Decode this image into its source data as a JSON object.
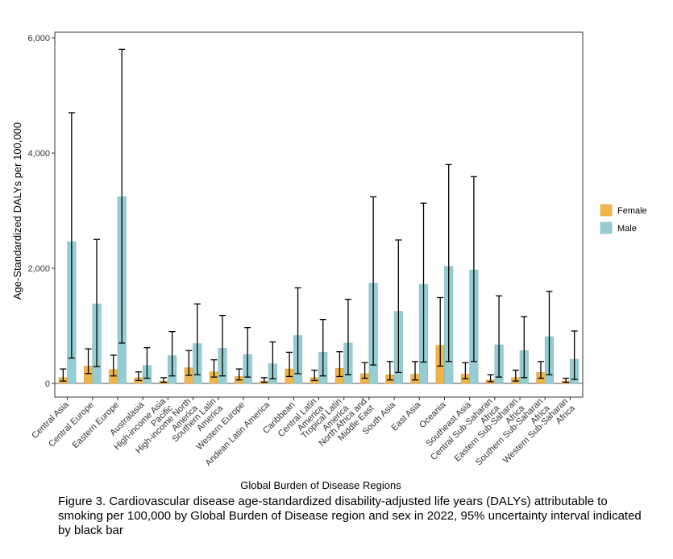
{
  "chart_data": {
    "type": "bar",
    "title": "",
    "xlabel": "Global Burden of Disease Regions",
    "ylabel": "Age-Standardized DALYs per 100,000",
    "ylim": [
      0,
      6000
    ],
    "yticks": [
      0,
      2000,
      4000,
      6000
    ],
    "ytick_labels": [
      "0",
      "2,000",
      "4,000",
      "6,000"
    ],
    "grid": false,
    "legend_position": "right",
    "categories": [
      "Central Asia",
      "Central Europe",
      "Eastern Europe",
      "Australasia",
      "High-income Asia Pacific",
      "High-income North America",
      "Southern Latin America",
      "Western Europe",
      "Andean Latin America",
      "Caribbean",
      "Central Latin America",
      "Tropical Latin America",
      "North Africa and Middle East",
      "South Asia",
      "East Asia",
      "Oceania",
      "Southeast Asia",
      "Central Sub-Saharan Africa",
      "Eastern Sub-Saharan Africa",
      "Southern Sub-Saharan Africa",
      "Western Sub-Saharan Africa"
    ],
    "category_label_lines": [
      [
        "Central Asia"
      ],
      [
        "Central Europe"
      ],
      [
        "Eastern Europe"
      ],
      [
        "Australasia"
      ],
      [
        "High-income Asia",
        "Pacific"
      ],
      [
        "High-income North",
        "America"
      ],
      [
        "Southern Latin",
        "America"
      ],
      [
        "Western Europe"
      ],
      [
        "Andean Latin America"
      ],
      [
        "Caribbean"
      ],
      [
        "Central Latin",
        "America"
      ],
      [
        "Tropical Latin",
        "America"
      ],
      [
        "North Africa and",
        "Middle East"
      ],
      [
        "South Asia"
      ],
      [
        "East Asia"
      ],
      [
        "Oceania"
      ],
      [
        "Southeast Asia"
      ],
      [
        "Central Sub-Saharan",
        "Africa"
      ],
      [
        "Eastern Sub-Saharan",
        "Africa"
      ],
      [
        "Southern Sub-Saharan",
        "Africa"
      ],
      [
        "Western Sub-Saharan",
        "Africa"
      ]
    ],
    "series": [
      {
        "name": "Female",
        "color": "#f0b54a",
        "values": [
          100,
          300,
          240,
          100,
          40,
          270,
          200,
          120,
          40,
          250,
          100,
          260,
          170,
          150,
          160,
          660,
          160,
          60,
          100,
          190,
          40
        ],
        "lower": [
          40,
          170,
          130,
          50,
          20,
          140,
          110,
          60,
          20,
          120,
          50,
          120,
          90,
          60,
          60,
          300,
          80,
          30,
          40,
          90,
          20
        ],
        "upper": [
          250,
          600,
          490,
          200,
          100,
          570,
          410,
          250,
          100,
          540,
          230,
          550,
          360,
          380,
          380,
          1490,
          360,
          150,
          230,
          380,
          90
        ]
      },
      {
        "name": "Male",
        "color": "#96cdd3",
        "values": [
          2460,
          1380,
          3240,
          310,
          480,
          690,
          610,
          500,
          340,
          830,
          540,
          700,
          1740,
          1250,
          1720,
          2030,
          1970,
          670,
          570,
          810,
          420
        ]
      }
    ],
    "male_error": {
      "lower": [
        440,
        290,
        700,
        90,
        130,
        150,
        130,
        110,
        80,
        170,
        130,
        150,
        320,
        190,
        370,
        380,
        380,
        110,
        100,
        150,
        70
      ],
      "upper": [
        4700,
        2500,
        5800,
        620,
        900,
        1380,
        1180,
        970,
        720,
        1660,
        1110,
        1460,
        3240,
        2490,
        3130,
        3800,
        3590,
        1520,
        1160,
        1600,
        910
      ]
    }
  },
  "caption": "Figure 3. Cardiovascular disease age-standardized disability-adjusted life years (DALYs) attributable to smoking per 100,000 by Global Burden of Disease region and sex in 2022, 95% uncertainty interval indicated by black bar"
}
